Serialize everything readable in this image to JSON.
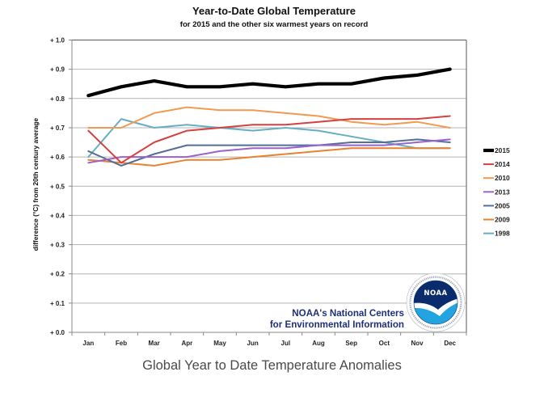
{
  "page": {
    "caption": "Global Year to Date Temperature Anomalies"
  },
  "branding": {
    "line1": "NOAA's National Centers",
    "line2": "for Environmental Information",
    "logo_text": "NOAA",
    "logo_icon": "noaa-logo-icon",
    "text_color": "#1f2f7a"
  },
  "chart_data": {
    "type": "line",
    "title": "Year-to-Date Global Temperature",
    "subtitle": "for 2015 and the other six warmest years on record",
    "xlabel": "",
    "ylabel": "difference (°C)  from 20th century average",
    "categories": [
      "Jan",
      "Feb",
      "Mar",
      "Apr",
      "May",
      "Jun",
      "Jul",
      "Aug",
      "Sep",
      "Oct",
      "Nov",
      "Dec"
    ],
    "ylim": [
      0,
      1.0
    ],
    "ytick_values": [
      0.0,
      0.1,
      0.2,
      0.3,
      0.4,
      0.5,
      0.6,
      0.7,
      0.8,
      0.9,
      1.0
    ],
    "yticks": [
      "+ 0.0",
      "+ 0.1",
      "+ 0.2",
      "+ 0.3",
      "+ 0.4",
      "+ 0.5",
      "+ 0.6",
      "+ 0.7",
      "+ 0.8",
      "+ 0.9",
      "+ 1.0"
    ],
    "grid": true,
    "legend_position": "right",
    "series": [
      {
        "name": "2015",
        "color": "#000000",
        "emphasis": true,
        "values": [
          0.81,
          0.84,
          0.86,
          0.84,
          0.84,
          0.85,
          0.84,
          0.85,
          0.85,
          0.87,
          0.88,
          0.9
        ]
      },
      {
        "name": "2014",
        "color": "#d6403f",
        "values": [
          0.69,
          0.58,
          0.65,
          0.69,
          0.7,
          0.71,
          0.71,
          0.72,
          0.73,
          0.73,
          0.73,
          0.74
        ]
      },
      {
        "name": "2010",
        "color": "#f29a52",
        "values": [
          0.7,
          0.7,
          0.75,
          0.77,
          0.76,
          0.76,
          0.75,
          0.74,
          0.72,
          0.71,
          0.72,
          0.7
        ]
      },
      {
        "name": "2013",
        "color": "#9a62cc",
        "values": [
          0.58,
          0.6,
          0.6,
          0.6,
          0.62,
          0.63,
          0.63,
          0.64,
          0.64,
          0.64,
          0.65,
          0.66
        ]
      },
      {
        "name": "2005",
        "color": "#546e98",
        "values": [
          0.62,
          0.57,
          0.61,
          0.64,
          0.64,
          0.64,
          0.64,
          0.64,
          0.65,
          0.65,
          0.66,
          0.65
        ]
      },
      {
        "name": "2009",
        "color": "#e8822f",
        "values": [
          0.59,
          0.58,
          0.57,
          0.59,
          0.59,
          0.6,
          0.61,
          0.62,
          0.63,
          0.63,
          0.63,
          0.63
        ]
      },
      {
        "name": "1998",
        "color": "#66aec2",
        "values": [
          0.6,
          0.73,
          0.7,
          0.71,
          0.7,
          0.69,
          0.7,
          0.69,
          0.67,
          0.65,
          0.63,
          0.63
        ]
      }
    ]
  }
}
